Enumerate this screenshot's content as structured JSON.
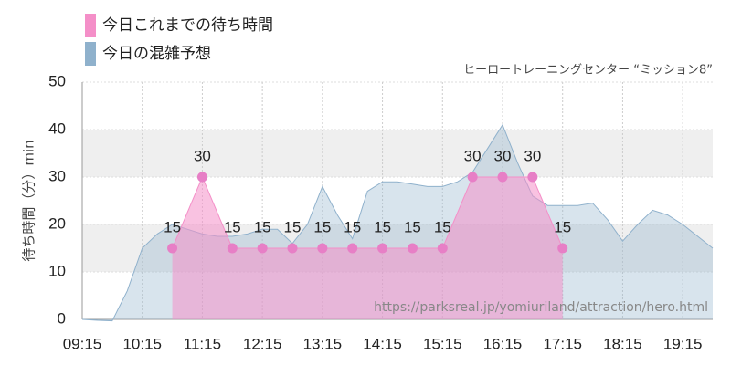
{
  "chart_data": {
    "type": "area",
    "subtitle": "ヒーロートレーニングセンター “ミッション8”",
    "ylabel": "待ち時間（分）min",
    "watermark": "https://parksreal.jp/yomiuriland/attraction/hero.html",
    "xlim": [
      "09:15",
      "19:45"
    ],
    "xticks": [
      "09:15",
      "10:15",
      "11:15",
      "12:15",
      "13:15",
      "14:15",
      "15:15",
      "16:15",
      "17:15",
      "18:15",
      "19:15"
    ],
    "ylim": [
      0,
      50
    ],
    "yticks": [
      0,
      10,
      20,
      30,
      40,
      50
    ],
    "grid": true,
    "series": [
      {
        "name": "今日これまでの待ち時間",
        "color": "#f48fc8",
        "x": [
          "10:45",
          "11:15",
          "11:45",
          "12:15",
          "12:45",
          "13:15",
          "13:45",
          "14:15",
          "14:45",
          "15:15",
          "15:45",
          "16:15",
          "16:45",
          "17:15"
        ],
        "values": [
          15,
          30,
          15,
          15,
          15,
          15,
          15,
          15,
          15,
          15,
          30,
          30,
          30,
          15
        ]
      },
      {
        "name": "今日の混雑予想",
        "color": "#8fb1cc",
        "x": [
          "09:15",
          "09:30",
          "09:45",
          "10:00",
          "10:15",
          "10:30",
          "10:45",
          "11:00",
          "11:15",
          "11:30",
          "11:45",
          "12:00",
          "12:15",
          "12:30",
          "12:45",
          "13:00",
          "13:15",
          "13:30",
          "13:45",
          "14:00",
          "14:15",
          "14:30",
          "14:45",
          "15:00",
          "15:15",
          "15:30",
          "15:45",
          "16:00",
          "16:15",
          "16:30",
          "16:45",
          "17:00",
          "17:15",
          "17:30",
          "17:45",
          "18:00",
          "18:15",
          "18:30",
          "18:45",
          "19:00",
          "19:15",
          "19:30",
          "19:45"
        ],
        "values": [
          0,
          -0.2,
          -0.3,
          6,
          15,
          18,
          20,
          19,
          18,
          17.5,
          17.5,
          18,
          19,
          19,
          16,
          20,
          28,
          22,
          17,
          27,
          29,
          29,
          28.5,
          28,
          28,
          29,
          31,
          36,
          41,
          33,
          26,
          24,
          24,
          24,
          24.5,
          21,
          16.5,
          20,
          23,
          22,
          20,
          17.5,
          15
        ]
      }
    ]
  }
}
